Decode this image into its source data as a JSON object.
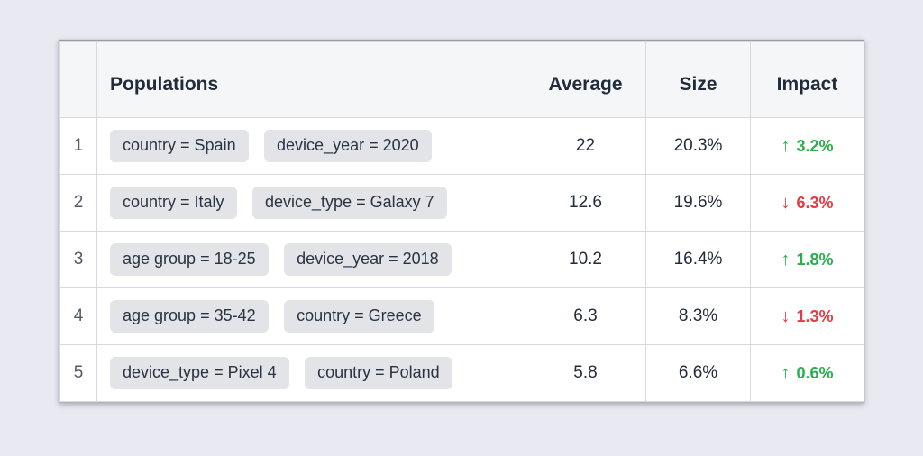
{
  "page": {
    "background_color": "#e9eaf1"
  },
  "table": {
    "columns": {
      "index": "",
      "populations": "Populations",
      "average": "Average",
      "size": "Size",
      "impact": "Impact"
    },
    "colors": {
      "positive": "#28af4b",
      "negative": "#e03e46"
    },
    "rows": [
      {
        "index": "1",
        "chips": [
          "country = Spain",
          "device_year = 2020"
        ],
        "average": "22",
        "size": "20.3%",
        "impact": {
          "direction": "up",
          "arrow": "↑",
          "value": "3.2%"
        }
      },
      {
        "index": "2",
        "chips": [
          "country = Italy",
          "device_type = Galaxy 7"
        ],
        "average": "12.6",
        "size": "19.6%",
        "impact": {
          "direction": "down",
          "arrow": "↓",
          "value": "6.3%"
        }
      },
      {
        "index": "3",
        "chips": [
          "age group = 18-25",
          "device_year = 2018"
        ],
        "average": "10.2",
        "size": "16.4%",
        "impact": {
          "direction": "up",
          "arrow": "↑",
          "value": "1.8%"
        }
      },
      {
        "index": "4",
        "chips": [
          "age group = 35-42",
          "country = Greece"
        ],
        "average": "6.3",
        "size": "8.3%",
        "impact": {
          "direction": "down",
          "arrow": "↓",
          "value": "1.3%"
        }
      },
      {
        "index": "5",
        "chips": [
          "device_type = Pixel 4",
          "country = Poland"
        ],
        "average": "5.8",
        "size": "6.6%",
        "impact": {
          "direction": "up",
          "arrow": "↑",
          "value": "0.6%"
        }
      }
    ]
  }
}
